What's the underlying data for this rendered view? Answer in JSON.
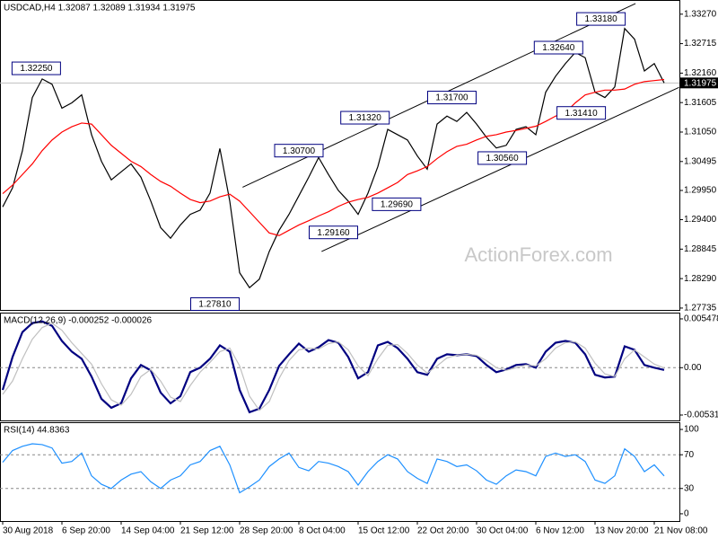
{
  "chart_data": [
    {
      "type": "line",
      "title": "USDCAD,H4  1.32087 1.32089 1.31934 1.31975",
      "watermark": "ActionForex.com",
      "categories": [
        "30 Aug 2018",
        null,
        null,
        null,
        null,
        null,
        "6 Sep 20:00",
        null,
        null,
        null,
        null,
        null,
        "14 Sep 04:00",
        null,
        null,
        null,
        null,
        null,
        "21 Sep 12:00",
        null,
        null,
        null,
        null,
        null,
        "28 Sep 20:00",
        null,
        null,
        null,
        null,
        null,
        "8 Oct 04:00",
        null,
        null,
        null,
        null,
        null,
        "15 Oct 12:00",
        null,
        null,
        null,
        null,
        null,
        "22 Oct 20:00",
        null,
        null,
        null,
        null,
        null,
        "30 Oct 04:00",
        null,
        null,
        null,
        null,
        null,
        "6 Nov 12:00",
        null,
        null,
        null,
        null,
        null,
        "13 Nov 20:00",
        null,
        null,
        null,
        null,
        null,
        "21 Nov 08:00",
        null
      ],
      "ylim": [
        1.277,
        1.3352
      ],
      "yticks": [
        {
          "value": 1.3327,
          "label": "1.33270"
        },
        {
          "value": 1.32715,
          "label": "1.32715"
        },
        {
          "value": 1.3216,
          "label": "1.32160"
        },
        {
          "value": 1.31605,
          "label": "1.31605"
        },
        {
          "value": 1.3105,
          "label": "1.31050"
        },
        {
          "value": 1.30495,
          "label": "1.30495"
        },
        {
          "value": 1.2995,
          "label": "1.29950"
        },
        {
          "value": 1.294,
          "label": "1.29400"
        },
        {
          "value": 1.28845,
          "label": "1.28845"
        },
        {
          "value": 1.2829,
          "label": "1.28290"
        },
        {
          "value": 1.27735,
          "label": "1.27735"
        }
      ],
      "last": {
        "value": 1.31975,
        "label": "1.31975"
      },
      "series": [
        {
          "name": "Close",
          "color": "#000000",
          "values": [
            1.2964,
            1.3,
            1.307,
            1.317,
            1.3205,
            1.3195,
            1.315,
            1.316,
            1.3175,
            1.31,
            1.305,
            1.3015,
            1.303,
            1.3045,
            1.302,
            1.2975,
            1.2925,
            1.2905,
            1.293,
            1.295,
            1.2958,
            1.299,
            1.3074,
            1.2975,
            1.284,
            1.2812,
            1.2828,
            1.288,
            1.292,
            1.295,
            1.2985,
            1.302,
            1.3057,
            1.3025,
            1.2995,
            1.2975,
            1.295,
            1.299,
            1.304,
            1.311,
            1.31,
            1.309,
            1.306,
            1.3035,
            1.312,
            1.3135,
            1.3125,
            1.3142,
            1.312,
            1.3095,
            1.3075,
            1.308,
            1.311,
            1.3115,
            1.31,
            1.318,
            1.321,
            1.3234,
            1.3255,
            1.3245,
            1.318,
            1.317,
            1.319,
            1.33,
            1.328,
            1.322,
            1.3234,
            1.31975
          ]
        },
        {
          "name": "MA",
          "color": "#ff0000",
          "values": [
            1.2989,
            1.3005,
            1.3025,
            1.3045,
            1.307,
            1.309,
            1.3105,
            1.3115,
            1.3122,
            1.312,
            1.31,
            1.308,
            1.3065,
            1.305,
            1.304,
            1.3025,
            1.3012,
            1.3003,
            1.299,
            1.2978,
            1.2972,
            1.2975,
            1.2983,
            1.2988,
            1.2975,
            1.2955,
            1.2935,
            1.2915,
            1.291,
            1.292,
            1.293,
            1.2938,
            1.2947,
            1.2955,
            1.2965,
            1.2973,
            1.2978,
            1.2982,
            1.299,
            1.3,
            1.301,
            1.3025,
            1.3032,
            1.304,
            1.3055,
            1.3068,
            1.3078,
            1.3082,
            1.309,
            1.3097,
            1.31,
            1.3105,
            1.3108,
            1.3112,
            1.3116,
            1.3125,
            1.3135,
            1.3142,
            1.316,
            1.3175,
            1.318,
            1.3184,
            1.3184,
            1.3186,
            1.3195,
            1.32,
            1.3202,
            1.3204
          ]
        }
      ],
      "trendlines": [
        {
          "start": [
            24.3,
            1.3001
          ],
          "end": [
            64.1,
            1.3347
          ]
        },
        {
          "start": [
            32.3,
            1.288
          ],
          "end": [
            68.5,
            1.3189
          ]
        }
      ],
      "annotations": [
        {
          "value": 1.3225,
          "label": "1.32250",
          "index": 3.4
        },
        {
          "value": 1.3318,
          "label": "1.33180",
          "index": 60.6
        },
        {
          "value": 1.3264,
          "label": "1.32640",
          "index": 56.3
        },
        {
          "value": 1.317,
          "label": "1.31700",
          "index": 45.5
        },
        {
          "value": 1.3132,
          "label": "1.31320",
          "index": 36.7
        },
        {
          "value": 1.307,
          "label": "1.30700",
          "index": 30
        },
        {
          "value": 1.3056,
          "label": "1.30560",
          "index": 50.6
        },
        {
          "value": 1.3141,
          "label": "1.31410",
          "index": 58.6
        },
        {
          "value": 1.2969,
          "label": "1.29690",
          "index": 39.9
        },
        {
          "value": 1.2916,
          "label": "1.29160",
          "index": 33.5
        },
        {
          "value": 1.2781,
          "label": "1.27810",
          "index": 21.5
        }
      ]
    },
    {
      "type": "line",
      "title": "MACD(12,26,9) -0.000252 -0.000026",
      "ylim": [
        -0.00592,
        0.00608
      ],
      "yticks": [
        0.005478,
        {
          "value": 0,
          "label": "0.00"
        },
        -0.005314
      ],
      "levels": [
        0
      ],
      "series": [
        {
          "name": "MACD",
          "color": "#000080",
          "values": [
            -0.0025,
            0.0012,
            0.004,
            0.005,
            0.0052,
            0.0047,
            0.003,
            0.0018,
            0.001,
            -0.001,
            -0.0035,
            -0.0045,
            -0.004,
            -0.0012,
            0.0003,
            -0.0003,
            -0.0028,
            -0.004,
            -0.0032,
            -0.0005,
            0,
            0.001,
            0.0025,
            0.0018,
            -0.0025,
            -0.005,
            -0.0046,
            -0.0025,
            0.0002,
            0.0015,
            0.0027,
            0.0018,
            0.0023,
            0.0031,
            0.0028,
            0.0012,
            -0.0012,
            -0.0005,
            0.0025,
            0.0029,
            0.0022,
            0.001,
            -0.0005,
            -0.0008,
            0.001,
            0.0015,
            0.0014,
            0.0015,
            0.0013,
            0.0003,
            -0.0005,
            -0.0002,
            0.0003,
            0.0004,
            0,
            0.0018,
            0.0028,
            0.003,
            0.0028,
            0.0015,
            -0.0008,
            -0.0011,
            -0.001,
            0.0024,
            0.002,
            0.0003,
            0,
            -0.000252
          ]
        },
        {
          "name": "Signal",
          "color": "#c0c0c0",
          "values": [
            -0.003,
            -0.0015,
            0.001,
            0.0032,
            0.0045,
            0.005,
            0.0042,
            0.0028,
            0.0016,
            0.0004,
            -0.0018,
            -0.0036,
            -0.0042,
            -0.003,
            -0.001,
            -0.0002,
            -0.0015,
            -0.0033,
            -0.0038,
            -0.002,
            -0.0005,
            0.0006,
            0.0018,
            0.0022,
            0.0002,
            -0.0032,
            -0.0048,
            -0.0038,
            -0.0012,
            0.0008,
            0.002,
            0.0022,
            0.0021,
            0.0027,
            0.0029,
            0.002,
            0.0002,
            -0.0009,
            0.001,
            0.0025,
            0.0026,
            0.0016,
            0.0003,
            -0.0006,
            0.0002,
            0.0011,
            0.0014,
            0.0015,
            0.0014,
            0.0008,
            0,
            -0.0003,
            0,
            0.0003,
            0.0002,
            0.001,
            0.0022,
            0.0028,
            0.0029,
            0.0022,
            0.0005,
            -0.0007,
            -0.001,
            0.001,
            0.002,
            0.0012,
            0.0004,
            -2.6e-05
          ]
        }
      ]
    },
    {
      "type": "line",
      "title": "RSI(14) 44.8363",
      "ylim": [
        -8.6,
        107.5
      ],
      "yticks": [
        100,
        70,
        30,
        0
      ],
      "levels": [
        70,
        30
      ],
      "series": [
        {
          "name": "RSI",
          "color": "#1e90ff",
          "values": [
            61,
            75,
            80,
            83,
            82,
            78,
            60,
            62,
            72,
            45,
            35,
            30,
            40,
            47,
            50,
            38,
            30,
            40,
            45,
            58,
            62,
            75,
            80,
            58,
            25,
            32,
            40,
            56,
            65,
            72,
            55,
            51,
            62,
            60,
            56,
            50,
            34,
            50,
            62,
            70,
            65,
            50,
            42,
            36,
            65,
            62,
            56,
            58,
            51,
            40,
            35,
            45,
            52,
            50,
            45,
            68,
            72,
            68,
            70,
            62,
            40,
            36,
            45,
            77,
            68,
            50,
            58,
            44.8363
          ]
        }
      ]
    }
  ]
}
